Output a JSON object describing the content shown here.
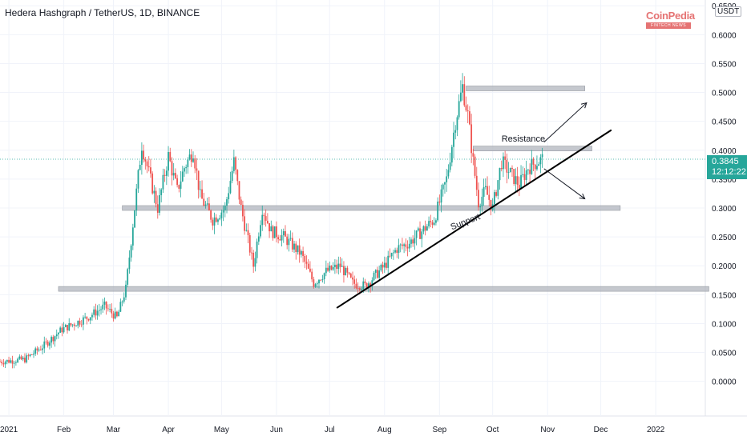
{
  "header": {
    "title": "Hedera Hashgraph / TetherUS, 1D, BINANCE",
    "currency_label": "USDT"
  },
  "watermark": {
    "brand": "CoinPedia",
    "tagline": "FINTECH NEWS"
  },
  "last_price": {
    "value": "0.3845",
    "countdown": "12:12:22",
    "color": "#26a69a"
  },
  "colors": {
    "up": "#26a69a",
    "down": "#ef5350",
    "zone": "#b2b5be",
    "line": "#000000",
    "axis_text": "#131722"
  },
  "chart_data": {
    "type": "candlestick",
    "symbol": "HBARUSDT",
    "interval": "1D",
    "exchange": "BINANCE",
    "y_axis": {
      "range": [
        -0.06,
        0.66
      ],
      "ticks": [
        "0.0000",
        "0.0500",
        "0.1000",
        "0.1500",
        "0.2000",
        "0.2500",
        "0.3000",
        "0.3500",
        "0.4000",
        "0.4500",
        "0.5000",
        "0.5500",
        "0.6000",
        "0.6500"
      ]
    },
    "x_axis": {
      "range": [
        "2020-12-27",
        "2022-01-29"
      ],
      "ticks": [
        {
          "date": "2021-01-01",
          "label": "2021"
        },
        {
          "date": "2021-02-01",
          "label": "Feb"
        },
        {
          "date": "2021-03-01",
          "label": "Mar"
        },
        {
          "date": "2021-04-01",
          "label": "Apr"
        },
        {
          "date": "2021-05-01",
          "label": "May"
        },
        {
          "date": "2021-06-01",
          "label": "Jun"
        },
        {
          "date": "2021-07-01",
          "label": "Jul"
        },
        {
          "date": "2021-08-01",
          "label": "Aug"
        },
        {
          "date": "2021-09-01",
          "label": "Sep"
        },
        {
          "date": "2021-10-01",
          "label": "Oct"
        },
        {
          "date": "2021-11-01",
          "label": "Nov"
        },
        {
          "date": "2021-12-01",
          "label": "Dec"
        },
        {
          "date": "2022-01-01",
          "label": "2022"
        }
      ]
    },
    "price_path": [
      [
        "2020-12-27",
        0.034
      ],
      [
        "2021-01-10",
        0.038
      ],
      [
        "2021-01-20",
        0.06
      ],
      [
        "2021-01-31",
        0.09
      ],
      [
        "2021-02-14",
        0.11
      ],
      [
        "2021-02-24",
        0.13
      ],
      [
        "2021-03-03",
        0.11
      ],
      [
        "2021-03-08",
        0.16
      ],
      [
        "2021-03-13",
        0.3
      ],
      [
        "2021-03-17",
        0.41
      ],
      [
        "2021-03-21",
        0.36
      ],
      [
        "2021-03-26",
        0.3
      ],
      [
        "2021-04-01",
        0.39
      ],
      [
        "2021-04-06",
        0.33
      ],
      [
        "2021-04-10",
        0.37
      ],
      [
        "2021-04-15",
        0.4
      ],
      [
        "2021-04-19",
        0.32
      ],
      [
        "2021-04-26",
        0.28
      ],
      [
        "2021-05-03",
        0.3
      ],
      [
        "2021-05-08",
        0.38
      ],
      [
        "2021-05-12",
        0.3
      ],
      [
        "2021-05-19",
        0.2
      ],
      [
        "2021-05-24",
        0.3
      ],
      [
        "2021-05-29",
        0.26
      ],
      [
        "2021-06-05",
        0.25
      ],
      [
        "2021-06-15",
        0.22
      ],
      [
        "2021-06-22",
        0.17
      ],
      [
        "2021-06-29",
        0.19
      ],
      [
        "2021-07-07",
        0.2
      ],
      [
        "2021-07-14",
        0.17
      ],
      [
        "2021-07-21",
        0.165
      ],
      [
        "2021-08-01",
        0.2
      ],
      [
        "2021-08-08",
        0.23
      ],
      [
        "2021-08-15",
        0.24
      ],
      [
        "2021-08-22",
        0.26
      ],
      [
        "2021-08-29",
        0.28
      ],
      [
        "2021-09-05",
        0.35
      ],
      [
        "2021-09-10",
        0.45
      ],
      [
        "2021-09-14",
        0.51
      ],
      [
        "2021-09-17",
        0.46
      ],
      [
        "2021-09-20",
        0.38
      ],
      [
        "2021-09-23",
        0.31
      ],
      [
        "2021-09-27",
        0.33
      ],
      [
        "2021-10-01",
        0.3
      ],
      [
        "2021-10-06",
        0.38
      ],
      [
        "2021-10-11",
        0.36
      ],
      [
        "2021-10-16",
        0.34
      ],
      [
        "2021-10-21",
        0.37
      ],
      [
        "2021-10-26",
        0.38
      ],
      [
        "2021-10-29",
        0.3845
      ]
    ],
    "candle_amplitude": 0.013,
    "horizontal_zones": [
      {
        "price": 0.16,
        "from": "2021-01-29",
        "to": "2022-01-31"
      },
      {
        "price": 0.3,
        "from": "2021-03-06",
        "to": "2021-12-12"
      },
      {
        "price": 0.403,
        "from": "2021-09-20",
        "to": "2021-11-26"
      },
      {
        "price": 0.507,
        "from": "2021-09-16",
        "to": "2021-11-22"
      }
    ],
    "support_line": {
      "from": {
        "date": "2021-07-05",
        "price": 0.127
      },
      "to": {
        "date": "2021-12-07",
        "price": 0.435
      }
    },
    "arrows": [
      {
        "from": {
          "date": "2021-10-30",
          "price": 0.414
        },
        "to": {
          "date": "2021-11-23",
          "price": 0.482
        }
      },
      {
        "from": {
          "date": "2021-10-30",
          "price": 0.368
        },
        "to": {
          "date": "2021-11-22",
          "price": 0.316
        }
      }
    ],
    "annotations": [
      {
        "text": "Resistance",
        "date": "2021-10-06",
        "price": 0.415,
        "angle": 0
      },
      {
        "text": "Support",
        "date": "2021-09-08",
        "price": 0.262,
        "angle": -21
      }
    ]
  }
}
